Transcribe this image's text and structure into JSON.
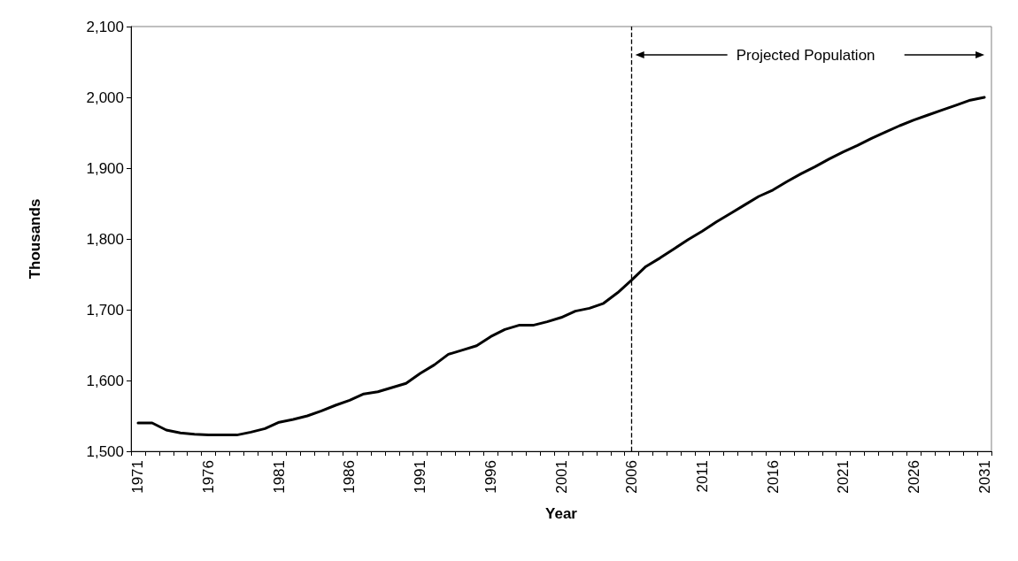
{
  "chart_data": {
    "type": "line",
    "xlabel": "Year",
    "ylabel": "Thousands",
    "categories": [
      "1971",
      null,
      null,
      null,
      null,
      "1976",
      null,
      null,
      null,
      null,
      "1981",
      null,
      null,
      null,
      null,
      "1986",
      null,
      null,
      null,
      null,
      "1991",
      null,
      null,
      null,
      null,
      "1996",
      null,
      null,
      null,
      null,
      "2001",
      null,
      null,
      null,
      null,
      "2006",
      null,
      null,
      null,
      null,
      "2011",
      null,
      null,
      null,
      null,
      "2016",
      null,
      null,
      null,
      null,
      "2021",
      null,
      null,
      null,
      null,
      "2026",
      null,
      null,
      null,
      null,
      "2031"
    ],
    "series": [
      {
        "color": "#000000",
        "values": [
          1540,
          1540,
          1530,
          1526,
          1524,
          1523,
          1523,
          1523,
          1527,
          1532,
          1541,
          1545,
          1550,
          1557,
          1565,
          1572,
          1581,
          1584,
          1590,
          1596,
          1610,
          1622,
          1637,
          1643,
          1649,
          1662,
          1672,
          1678,
          1678,
          1683,
          1689,
          1698,
          1702,
          1709,
          1724,
          1742,
          1761,
          1773,
          1786,
          1799,
          1811,
          1824,
          1836,
          1848,
          1860,
          1869,
          1881,
          1892,
          1902,
          1913,
          1923,
          1932,
          1942,
          1951,
          1960,
          1968,
          1975,
          1982,
          1989,
          1996,
          2000
        ]
      }
    ],
    "ylim": [
      1500,
      2100
    ],
    "yticks": [
      {
        "value": 1500,
        "label": "1,500"
      },
      {
        "value": 1600,
        "label": "1,600"
      },
      {
        "value": 1700,
        "label": "1,700"
      },
      {
        "value": 1800,
        "label": "1,800"
      },
      {
        "value": 1900,
        "label": "1,900"
      },
      {
        "value": 2000,
        "label": "2,000"
      },
      {
        "value": 2100,
        "label": "2,100"
      }
    ],
    "ref_lines": [
      {
        "axis": "x",
        "value": "2006",
        "color": "#000000",
        "line_style": "dashed"
      }
    ],
    "annotations": [
      "Projected Population"
    ],
    "grid": false,
    "marker": "none",
    "line_style": "solid"
  }
}
